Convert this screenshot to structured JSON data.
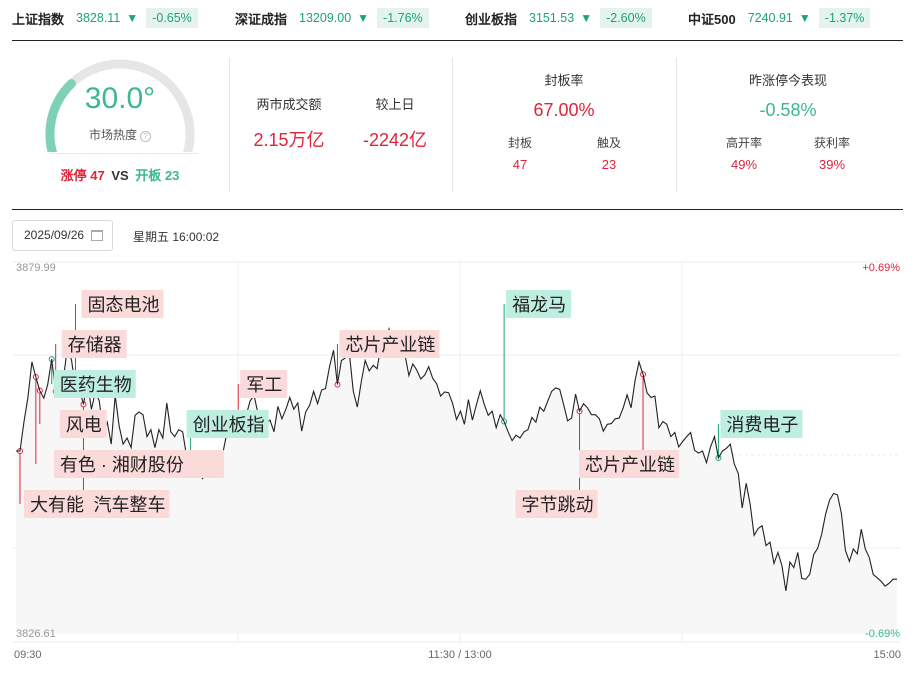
{
  "indices": [
    {
      "name": "上证指数",
      "value": "3828.11",
      "arrow": "▼",
      "change": "-0.65%"
    },
    {
      "name": "深证成指",
      "value": "13209.00",
      "arrow": "▼",
      "change": "-1.76%"
    },
    {
      "name": "创业板指",
      "value": "3151.53",
      "arrow": "▼",
      "change": "-2.60%"
    },
    {
      "name": "中证500",
      "value": "7240.91",
      "arrow": "▼",
      "change": "-1.37%"
    }
  ],
  "heat": {
    "value": 30.0,
    "display": "30.0°",
    "label": "市场热度",
    "info_glyph": "?",
    "limit_up_label": "涨停",
    "limit_up_count": "47",
    "vs": "VS",
    "open_board_label": "开板",
    "open_board_count": "23",
    "colors": {
      "gauge_fill": "#7fd1b5",
      "gauge_track": "#e6e6e6"
    }
  },
  "turnover": {
    "label": "两市成交额",
    "value": "2.15万亿",
    "compare_label": "较上日",
    "compare_value": "-2242亿"
  },
  "seal_rate": {
    "label": "封板率",
    "value": "67.00%",
    "sealed_label": "封板",
    "sealed_value": "47",
    "touched_label": "触及",
    "touched_value": "23"
  },
  "yesterday_limit": {
    "label": "昨涨停今表现",
    "value": "-0.58%",
    "high_open_label": "高开率",
    "high_open_value": "49%",
    "profit_label": "获利率",
    "profit_value": "39%"
  },
  "date_picker": {
    "value": "2025/09/26",
    "icon": "calendar-icon"
  },
  "time_text": "星期五 16:00:02",
  "colors": {
    "red": "#e0243b",
    "green": "#1aa37a",
    "red_tag_bg": "#fbdada",
    "green_tag_bg": "#bdeee0"
  },
  "chart_data": {
    "type": "line",
    "y_max_label": "3879.99",
    "y_min_label": "3826.61",
    "y_max_pct": "+0.69%",
    "y_min_pct": "-0.69%",
    "ylim": [
      3826.61,
      3879.99
    ],
    "x_ticks": [
      "09:30",
      "11:30 / 13:00",
      "15:00"
    ],
    "grid": true,
    "points": [
      [
        0,
        3853.3
      ],
      [
        1,
        3853.3
      ],
      [
        2,
        3857.5
      ],
      [
        3,
        3861.1
      ],
      [
        4,
        3866.3
      ],
      [
        5,
        3864.1
      ],
      [
        6,
        3862.1
      ],
      [
        7,
        3861.0
      ],
      [
        8,
        3863.0
      ],
      [
        9,
        3866.7
      ],
      [
        10,
        3862.0
      ],
      [
        11,
        3862.3
      ],
      [
        12,
        3864.1
      ],
      [
        13,
        3868.6
      ],
      [
        14,
        3866.5
      ],
      [
        15,
        3862.5
      ],
      [
        16,
        3862.3
      ],
      [
        17,
        3860.1
      ],
      [
        18,
        3863.5
      ],
      [
        19,
        3859.4
      ],
      [
        20,
        3861.9
      ],
      [
        21,
        3860.6
      ],
      [
        22,
        3855.9
      ],
      [
        23,
        3857.5
      ],
      [
        24,
        3854.3
      ],
      [
        25,
        3861.4
      ],
      [
        26,
        3856.9
      ],
      [
        27,
        3854.3
      ],
      [
        28,
        3855.2
      ],
      [
        29,
        3853.8
      ],
      [
        30,
        3858.5
      ],
      [
        31,
        3859.0
      ],
      [
        32,
        3858.6
      ],
      [
        33,
        3855.4
      ],
      [
        34,
        3856.4
      ],
      [
        35,
        3853.8
      ],
      [
        36,
        3856.4
      ],
      [
        37,
        3855.2
      ],
      [
        38,
        3860.3
      ],
      [
        39,
        3856.1
      ],
      [
        40,
        3855.4
      ],
      [
        41,
        3856.4
      ],
      [
        42,
        3856.1
      ],
      [
        43,
        3852.5
      ],
      [
        44,
        3852.5
      ],
      [
        45,
        3850.7
      ],
      [
        46,
        3851.7
      ],
      [
        47,
        3849.2
      ],
      [
        48,
        3851.7
      ],
      [
        49,
        3849.7
      ],
      [
        50,
        3851.0
      ],
      [
        51,
        3850.1
      ],
      [
        52,
        3852.7
      ],
      [
        53,
        3855.5
      ],
      [
        54,
        3856.2
      ],
      [
        55,
        3857.5
      ],
      [
        56,
        3858.3
      ],
      [
        57,
        3858.8
      ],
      [
        58,
        3858.5
      ],
      [
        59,
        3860.6
      ],
      [
        60,
        3861.4
      ],
      [
        61,
        3858.7
      ],
      [
        62,
        3855.9
      ],
      [
        63,
        3857.4
      ],
      [
        64,
        3857.8
      ],
      [
        65,
        3856.1
      ],
      [
        66,
        3859.8
      ],
      [
        67,
        3858.0
      ],
      [
        68,
        3859.4
      ],
      [
        69,
        3861.1
      ],
      [
        70,
        3859.4
      ],
      [
        71,
        3860.3
      ],
      [
        72,
        3856.2
      ],
      [
        73,
        3859.0
      ],
      [
        74,
        3860.0
      ],
      [
        75,
        3862.0
      ],
      [
        76,
        3860.2
      ],
      [
        77,
        3862.2
      ],
      [
        78,
        3862.4
      ],
      [
        79,
        3865.6
      ],
      [
        80,
        3868.0
      ],
      [
        81,
        3863.0
      ],
      [
        82,
        3866.5
      ],
      [
        83,
        3866.9
      ],
      [
        84,
        3867.5
      ],
      [
        85,
        3862.0
      ],
      [
        86,
        3859.7
      ],
      [
        87,
        3863.4
      ],
      [
        88,
        3866.5
      ],
      [
        89,
        3865.0
      ],
      [
        90,
        3865.8
      ],
      [
        91,
        3865.3
      ],
      [
        92,
        3868.8
      ],
      [
        93,
        3869.2
      ],
      [
        94,
        3871.1
      ],
      [
        95,
        3868.6
      ],
      [
        96,
        3867.5
      ],
      [
        97,
        3867.6
      ],
      [
        98,
        3867.4
      ],
      [
        99,
        3864.3
      ],
      [
        100,
        3866.0
      ],
      [
        101,
        3865.1
      ],
      [
        102,
        3863.8
      ],
      [
        103,
        3864.4
      ],
      [
        104,
        3865.6
      ],
      [
        105,
        3863.9
      ],
      [
        106,
        3863.1
      ],
      [
        107,
        3861.3
      ],
      [
        108,
        3861.9
      ],
      [
        109,
        3861.8
      ],
      [
        110,
        3860.3
      ],
      [
        111,
        3857.9
      ],
      [
        112,
        3859.1
      ],
      [
        113,
        3857.2
      ],
      [
        114,
        3860.8
      ],
      [
        115,
        3857.8
      ],
      [
        116,
        3860.0
      ],
      [
        117,
        3862.1
      ],
      [
        118,
        3860.1
      ],
      [
        119,
        3858.5
      ],
      [
        120,
        3859.1
      ],
      [
        121,
        3856.7
      ],
      [
        122,
        3858.6
      ],
      [
        123,
        3857.6
      ],
      [
        124,
        3856.1
      ],
      [
        125,
        3854.8
      ],
      [
        126,
        3855.6
      ],
      [
        127,
        3855.2
      ],
      [
        128,
        3856.1
      ],
      [
        129,
        3856.4
      ],
      [
        130,
        3858.2
      ],
      [
        131,
        3857.5
      ],
      [
        132,
        3859.7
      ],
      [
        133,
        3859.1
      ],
      [
        134,
        3860.6
      ],
      [
        135,
        3862.0
      ],
      [
        136,
        3862.5
      ],
      [
        137,
        3862.3
      ],
      [
        138,
        3860.1
      ],
      [
        139,
        3857.7
      ],
      [
        140,
        3858.1
      ],
      [
        141,
        3861.6
      ],
      [
        142,
        3859.1
      ],
      [
        143,
        3860.2
      ],
      [
        144,
        3859.6
      ],
      [
        145,
        3858.6
      ],
      [
        146,
        3858.6
      ],
      [
        147,
        3858.0
      ],
      [
        148,
        3856.2
      ],
      [
        149,
        3857.2
      ],
      [
        150,
        3857.3
      ],
      [
        151,
        3858.0
      ],
      [
        152,
        3858.1
      ],
      [
        153,
        3859.6
      ],
      [
        154,
        3861.5
      ],
      [
        155,
        3859.6
      ],
      [
        156,
        3863.6
      ],
      [
        157,
        3866.3
      ],
      [
        158,
        3864.5
      ],
      [
        159,
        3861.8
      ],
      [
        160,
        3861.1
      ],
      [
        161,
        3861.3
      ],
      [
        162,
        3856.7
      ],
      [
        163,
        3857.6
      ],
      [
        164,
        3857.2
      ],
      [
        165,
        3855.4
      ],
      [
        166,
        3856.0
      ],
      [
        167,
        3853.9
      ],
      [
        168,
        3854.7
      ],
      [
        169,
        3855.4
      ],
      [
        170,
        3856.0
      ],
      [
        171,
        3853.4
      ],
      [
        172,
        3853.0
      ],
      [
        173,
        3853.3
      ],
      [
        174,
        3851.6
      ],
      [
        175,
        3853.9
      ],
      [
        176,
        3855.4
      ],
      [
        177,
        3852.3
      ],
      [
        178,
        3853.3
      ],
      [
        179,
        3853.7
      ],
      [
        180,
        3854.3
      ],
      [
        181,
        3851.4
      ],
      [
        182,
        3850.0
      ],
      [
        183,
        3845.0
      ],
      [
        184,
        3848.6
      ],
      [
        185,
        3845.5
      ],
      [
        186,
        3841.0
      ],
      [
        187,
        3842.0
      ],
      [
        188,
        3842.4
      ],
      [
        189,
        3839.5
      ],
      [
        190,
        3840.0
      ],
      [
        191,
        3836.9
      ],
      [
        192,
        3838.5
      ],
      [
        193,
        3836.6
      ],
      [
        194,
        3832.9
      ],
      [
        195,
        3837.1
      ],
      [
        196,
        3836.3
      ],
      [
        197,
        3838.5
      ],
      [
        198,
        3834.7
      ],
      [
        199,
        3834.6
      ],
      [
        200,
        3835.3
      ],
      [
        201,
        3838.2
      ],
      [
        202,
        3839.1
      ],
      [
        203,
        3841.1
      ],
      [
        204,
        3844.1
      ],
      [
        205,
        3846.1
      ],
      [
        206,
        3847.1
      ],
      [
        207,
        3846.9
      ],
      [
        208,
        3844.2
      ],
      [
        209,
        3838.8
      ],
      [
        210,
        3837.2
      ],
      [
        211,
        3839.0
      ],
      [
        212,
        3838.3
      ],
      [
        213,
        3841.9
      ],
      [
        214,
        3839.0
      ],
      [
        215,
        3837.8
      ],
      [
        216,
        3835.3
      ],
      [
        217,
        3834.8
      ],
      [
        218,
        3834.3
      ],
      [
        219,
        3833.6
      ],
      [
        220,
        3834.0
      ],
      [
        221,
        3834.6
      ],
      [
        222,
        3834.6
      ]
    ],
    "annotations": [
      {
        "label": "大有能",
        "color": "red",
        "index": 1
      },
      {
        "label": "有色 · 湘财股份",
        "color": "red",
        "index": 5
      },
      {
        "label": "风电",
        "color": "red",
        "index": 6
      },
      {
        "label": "医药生物",
        "color": "green",
        "index": 9
      },
      {
        "label": "存储器",
        "color": "red",
        "index": 10
      },
      {
        "label": "固态电池",
        "color": "red",
        "index": 15
      },
      {
        "label": "汽车整车",
        "color": "red",
        "index": 17
      },
      {
        "label": "创业板指",
        "color": "green",
        "index": 44
      },
      {
        "label": "军工",
        "color": "red",
        "index": 56
      },
      {
        "label": "芯片产业链",
        "color": "red",
        "index": 81
      },
      {
        "label": "福龙马",
        "color": "green",
        "index": 123
      },
      {
        "label": "字节跳动",
        "color": "red",
        "index": 142
      },
      {
        "label": "芯片产业链",
        "color": "red",
        "index": 158
      },
      {
        "label": "消费电子",
        "color": "green",
        "index": 177
      }
    ]
  }
}
